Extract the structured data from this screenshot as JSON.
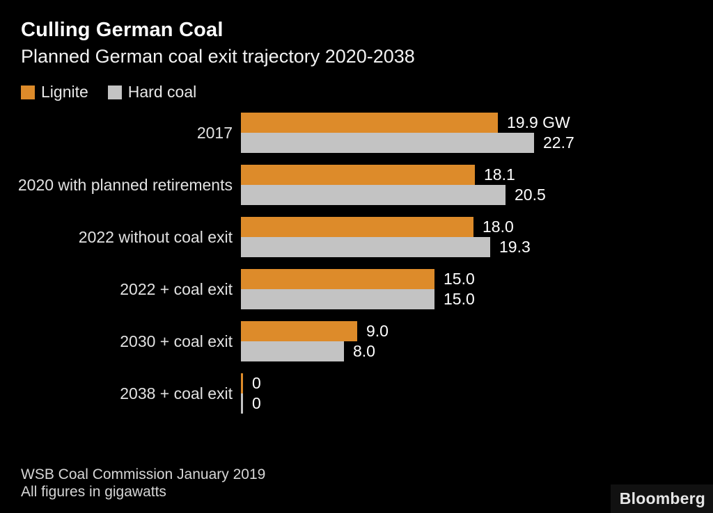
{
  "header": {
    "title": "Culling German Coal",
    "subtitle": "Planned German coal exit trajectory 2020-2038"
  },
  "legend": {
    "items": [
      {
        "label": "Lignite",
        "color": "#dd8b2a"
      },
      {
        "label": "Hard coal",
        "color": "#c3c3c3"
      }
    ]
  },
  "chart_data": {
    "type": "bar",
    "orientation": "horizontal",
    "title": "Culling German Coal",
    "subtitle": "Planned German coal exit trajectory 2020-2038",
    "categories": [
      "2017",
      "2020 with planned retirements",
      "2022 without coal exit",
      "2022 + coal exit",
      "2030 + coal exit",
      "2038 + coal exit"
    ],
    "series": [
      {
        "name": "Lignite",
        "color": "#dd8b2a",
        "values": [
          19.9,
          18.1,
          18.0,
          15.0,
          9.0,
          0
        ],
        "value_labels": [
          "19.9 GW",
          "18.1",
          "18.0",
          "15.0",
          "9.0",
          "0"
        ]
      },
      {
        "name": "Hard coal",
        "color": "#c3c3c3",
        "values": [
          22.7,
          20.5,
          19.3,
          15.0,
          8.0,
          0
        ],
        "value_labels": [
          "22.7",
          "20.5",
          "19.3",
          "15.0",
          "8.0",
          "0"
        ]
      }
    ],
    "unit": "gigawatts",
    "xlim": [
      0,
      22.7
    ],
    "grid": false,
    "legend_position": "top-left",
    "value_labels_shown": true
  },
  "footer": {
    "source": "WSB Coal Commission January 2019",
    "note": "All figures in gigawatts",
    "brand": "Bloomberg"
  },
  "colors": {
    "background": "#000000",
    "lignite": "#dd8b2a",
    "hard_coal": "#c3c3c3",
    "title_text": "#ffffff",
    "label_text": "#e2e2e2",
    "value_text": "#ffffff",
    "footer_text": "#d6d6d6"
  }
}
